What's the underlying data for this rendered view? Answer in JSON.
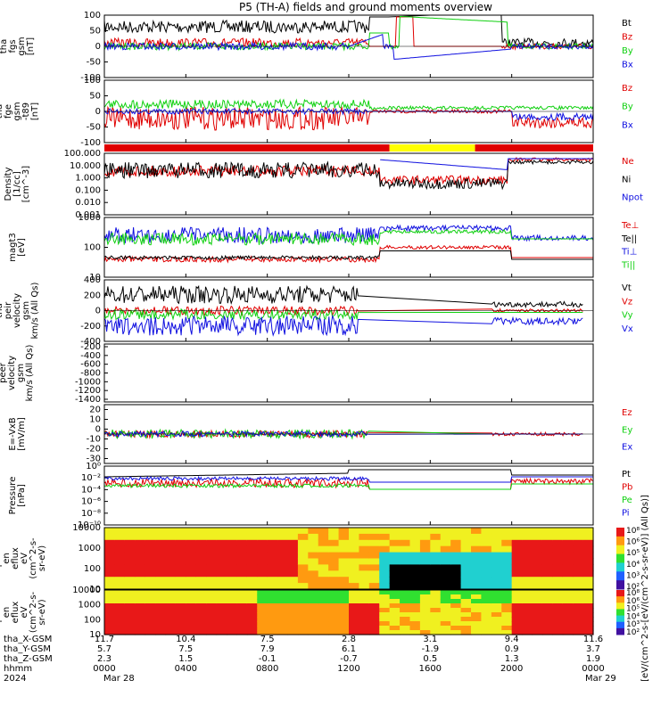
{
  "title": "P5 (TH-A) fields and ground moments overview",
  "colors": {
    "black": "#000000",
    "red": "#e00000",
    "green": "#10d010",
    "blue": "#1010e0",
    "yellow": "#ffff00",
    "cyan": "#00c8c8"
  },
  "chart_data": {
    "type": "line",
    "x_range_hours": [
      0,
      24
    ],
    "x_ticks": [
      {
        "hhmm": "0000",
        "x_gsm": "11.7",
        "y_gsm": "5.7",
        "z_gsm": "2.3"
      },
      {
        "hhmm": "0400",
        "x_gsm": "10.4",
        "y_gsm": "7.5",
        "z_gsm": "1.5"
      },
      {
        "hhmm": "0800",
        "x_gsm": "7.5",
        "y_gsm": "7.9",
        "z_gsm": "-0.1"
      },
      {
        "hhmm": "1200",
        "x_gsm": "2.8",
        "y_gsm": "6.1",
        "z_gsm": "-0.7"
      },
      {
        "hhmm": "1600",
        "x_gsm": "3.1",
        "y_gsm": "-1.9",
        "z_gsm": "0.5"
      },
      {
        "hhmm": "2000",
        "x_gsm": "9.4",
        "y_gsm": "0.9",
        "z_gsm": "1.3"
      },
      {
        "hhmm": "0000",
        "x_gsm": "11.6",
        "y_gsm": "3.7",
        "z_gsm": "1.9"
      }
    ],
    "row_labels": [
      "tha_X-GSM",
      "tha_Y-GSM",
      "tha_Z-GSM",
      "hhmm",
      "2024"
    ],
    "date_labels": [
      "Mar 28",
      "Mar 29"
    ],
    "panels": [
      {
        "id": "fgs",
        "ylabel": [
          "tha",
          "fgs",
          "gsm",
          "[nT]"
        ],
        "ylim": [
          -100,
          100
        ],
        "yticks": [
          "100",
          "50",
          "0",
          "-50",
          "-100"
        ],
        "legend": [
          {
            "name": "Bt",
            "color": "black"
          },
          {
            "name": "Bz",
            "color": "red"
          },
          {
            "name": "By",
            "color": "green"
          },
          {
            "name": "Bx",
            "color": "blue"
          }
        ]
      },
      {
        "id": "fge",
        "ylabel": [
          "tha",
          "fge",
          "gsm",
          "-t89",
          "[nT]"
        ],
        "ylim": [
          -120,
          120
        ],
        "yticks": [
          "100",
          "50",
          "0",
          "-50",
          "-100"
        ],
        "legend": [
          {
            "name": "Bz",
            "color": "red"
          },
          {
            "name": "By",
            "color": "green"
          },
          {
            "name": "Bx",
            "color": "blue"
          }
        ]
      },
      {
        "id": "density",
        "ylabel": [
          "Density",
          "[1/cc]",
          "[cm^-3]"
        ],
        "log": true,
        "yticks": [
          "100.000",
          "10.000",
          "1.000",
          "0.100",
          "0.010",
          "0.001"
        ],
        "legend": [
          {
            "name": "Ne",
            "color": "red"
          },
          {
            "name": "Ni",
            "color": "black"
          },
          {
            "name": "Npot",
            "color": "blue"
          }
        ]
      },
      {
        "id": "temp",
        "ylabel": [
          "magt3",
          "[eV]"
        ],
        "log": true,
        "yticks": [
          "1000",
          "100",
          "10"
        ],
        "legend": [
          {
            "name": "Te⊥",
            "color": "red"
          },
          {
            "name": "Te||",
            "color": "black"
          },
          {
            "name": "Ti⊥",
            "color": "blue"
          },
          {
            "name": "Ti||",
            "color": "green"
          }
        ]
      },
      {
        "id": "peir_vel",
        "ylabel": [
          "tha",
          "peir",
          "velocity",
          "gsm",
          "km/s (All Qs)"
        ],
        "ylim": [
          -400,
          400
        ],
        "yticks": [
          "400",
          "200",
          "0",
          "-200",
          "-400"
        ],
        "legend": [
          {
            "name": "Vt",
            "color": "black"
          },
          {
            "name": "Vz",
            "color": "red"
          },
          {
            "name": "Vy",
            "color": "green"
          },
          {
            "name": "Vx",
            "color": "blue"
          }
        ]
      },
      {
        "id": "peer_vel",
        "ylabel": [
          "tha",
          "peer",
          "velocity",
          "gsm",
          "km/s (All Qs)"
        ],
        "ylim": [
          -1400,
          0
        ],
        "yticks": [
          "-200",
          "-400",
          "-600",
          "-800",
          "-1000",
          "-1200",
          "-1400"
        ],
        "legend": [
          {
            "name": "Vt",
            "color": "black"
          },
          {
            "name": "Vz",
            "color": "red"
          },
          {
            "name": "Vy",
            "color": "green"
          },
          {
            "name": "Vx",
            "color": "blue"
          }
        ]
      },
      {
        "id": "efield",
        "ylabel": [
          "E=-VxB",
          "[mV/m]"
        ],
        "ylim": [
          -30,
          30
        ],
        "yticks": [
          "20",
          "10",
          "0",
          "-10",
          "-20",
          "-30"
        ],
        "legend": [
          {
            "name": "Ez",
            "color": "red"
          },
          {
            "name": "Ey",
            "color": "green"
          },
          {
            "name": "Ex",
            "color": "blue"
          }
        ]
      },
      {
        "id": "pressure",
        "ylabel": [
          "Pressure",
          "[nPa]"
        ],
        "log": true,
        "yticks": [
          "10⁰",
          "10⁻²",
          "10⁻⁴",
          "10⁻⁶",
          "10⁻⁸",
          "10⁻¹⁰"
        ],
        "legend": [
          {
            "name": "Pt",
            "color": "black"
          },
          {
            "name": "Pb",
            "color": "red"
          },
          {
            "name": "Pe",
            "color": "green"
          },
          {
            "name": "Pi",
            "color": "blue"
          }
        ]
      },
      {
        "id": "peir_spec",
        "ylabel": [
          "tha",
          "peir",
          "en",
          "eflux",
          "eV",
          "(cm^2-s-",
          "sr-eV)"
        ],
        "log": true,
        "yticks": [
          "10000",
          "1000",
          "100",
          "10"
        ],
        "colorbar": [
          "10⁸",
          "10⁶",
          "10⁵",
          "10⁴",
          "10³",
          "10²"
        ]
      },
      {
        "id": "peer_spec",
        "ylabel": [
          "tha",
          "peer",
          "en",
          "eflux",
          "eV",
          "(cm^2-s-",
          "sr-eV)"
        ],
        "log": true,
        "yticks": [
          "10000",
          "1000",
          "100",
          "10"
        ],
        "colorbar": [
          "10⁸",
          "10⁶",
          "10⁵",
          "10⁴",
          "10³",
          "10²"
        ]
      }
    ],
    "colorbar_label": "[eV/(cm^2-s-sr-eV)]",
    "colorbar_label_combined": "[eV/(cm^2-s-[eV/(cm^2-s-sr-eV)] (All Qs)]"
  }
}
